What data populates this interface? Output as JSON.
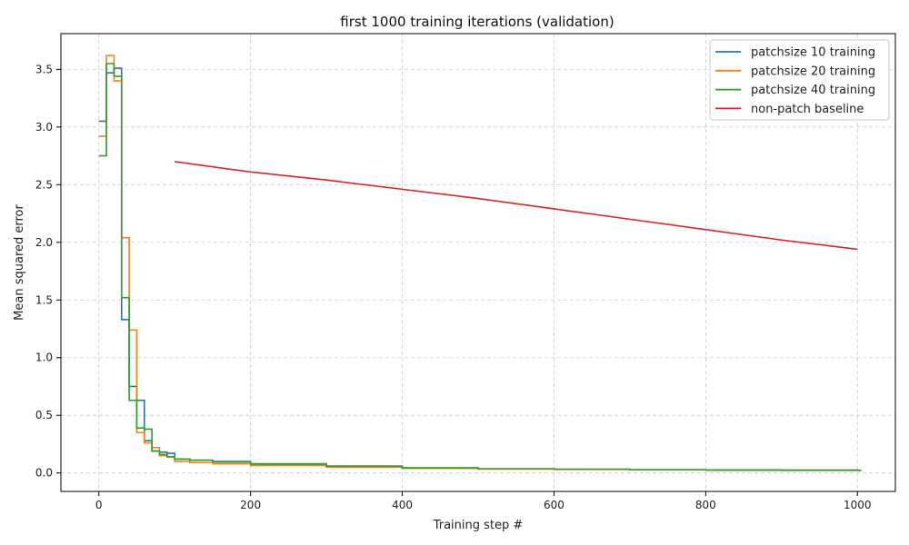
{
  "chart_data": {
    "type": "line",
    "title": "first 1000 training iterations (validation)",
    "xlabel": "Training step #",
    "ylabel": "Mean squared error",
    "xlim": [
      -50,
      1050
    ],
    "ylim": [
      -0.16,
      3.81
    ],
    "xticks": [
      0,
      200,
      400,
      600,
      800,
      1000
    ],
    "xtick_labels": [
      "0",
      "200",
      "400",
      "600",
      "800",
      "1000"
    ],
    "yticks": [
      0.0,
      0.5,
      1.0,
      1.5,
      2.0,
      2.5,
      3.0,
      3.5
    ],
    "ytick_labels": [
      "0.0",
      "0.5",
      "1.0",
      "1.5",
      "2.0",
      "2.5",
      "3.0",
      "3.5"
    ],
    "grid": true,
    "legend_position": "top-right",
    "series": [
      {
        "name": "patchsize 10 training",
        "color": "#1f77b4",
        "step": true,
        "x": [
          0,
          10,
          20,
          30,
          40,
          50,
          60,
          70,
          80,
          90,
          100,
          120,
          150,
          200,
          300,
          400,
          500,
          600,
          700,
          800,
          900,
          1000
        ],
        "y": [
          3.05,
          3.47,
          3.51,
          1.33,
          0.75,
          0.63,
          0.28,
          0.19,
          0.18,
          0.17,
          0.12,
          0.11,
          0.095,
          0.075,
          0.055,
          0.042,
          0.035,
          0.032,
          0.028,
          0.026,
          0.025,
          0.024
        ]
      },
      {
        "name": "patchsize 20 training",
        "color": "#ff7f0e",
        "step": true,
        "x": [
          0,
          10,
          20,
          30,
          40,
          50,
          60,
          70,
          80,
          90,
          100,
          120,
          150,
          200,
          300,
          400,
          500,
          600,
          700,
          800,
          900,
          1000
        ],
        "y": [
          2.92,
          3.62,
          3.4,
          2.04,
          1.24,
          0.35,
          0.26,
          0.22,
          0.15,
          0.14,
          0.1,
          0.09,
          0.08,
          0.065,
          0.05,
          0.04,
          0.033,
          0.03,
          0.027,
          0.025,
          0.024,
          0.023
        ]
      },
      {
        "name": "patchsize 40 training",
        "color": "#2ca02c",
        "step": true,
        "x": [
          0,
          10,
          20,
          30,
          40,
          50,
          60,
          70,
          80,
          90,
          100,
          120,
          150,
          200,
          300,
          400,
          500,
          600,
          700,
          800,
          900,
          1000
        ],
        "y": [
          2.75,
          3.55,
          3.44,
          1.52,
          0.63,
          0.39,
          0.38,
          0.19,
          0.16,
          0.14,
          0.12,
          0.11,
          0.1,
          0.08,
          0.06,
          0.045,
          0.037,
          0.033,
          0.028,
          0.025,
          0.023,
          0.022
        ]
      },
      {
        "name": "non-patch baseline",
        "color": "#d62728",
        "step": false,
        "x": [
          100,
          200,
          300,
          400,
          500,
          600,
          700,
          800,
          900,
          1000
        ],
        "y": [
          2.7,
          2.61,
          2.54,
          2.46,
          2.38,
          2.29,
          2.2,
          2.11,
          2.02,
          1.94
        ]
      }
    ]
  }
}
